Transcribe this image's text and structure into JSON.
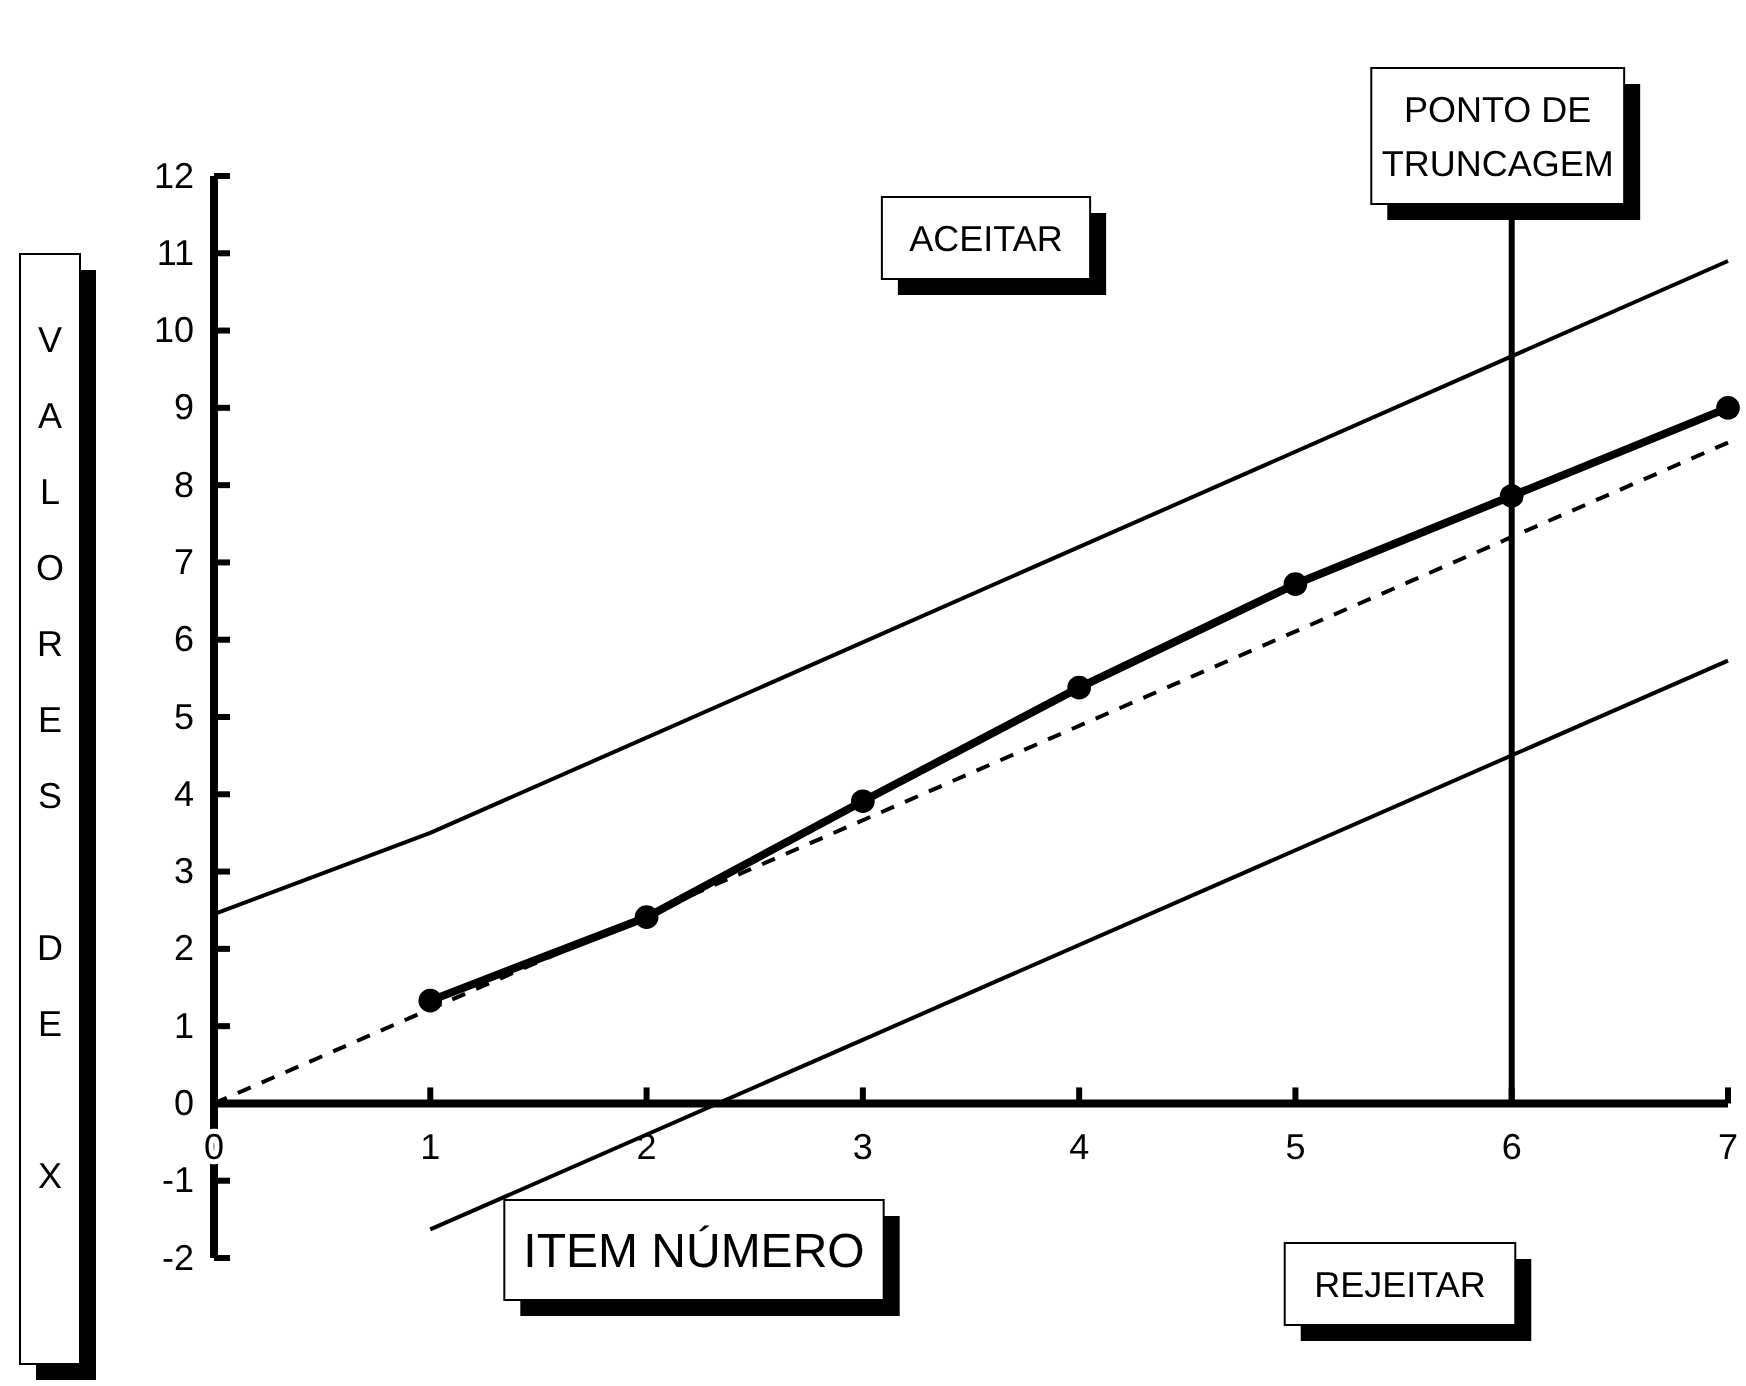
{
  "chart_data": {
    "type": "line",
    "xlabel": "ITEM NÚMERO",
    "ylabel": "VALORES DE X",
    "xlim": [
      0,
      7
    ],
    "xticks": [
      0,
      1,
      2,
      3,
      4,
      5,
      6,
      7
    ],
    "ylim": [
      -2,
      12
    ],
    "yticks": [
      -2,
      -1,
      0,
      1,
      2,
      3,
      4,
      5,
      6,
      7,
      8,
      9,
      10,
      11,
      12
    ],
    "grid": false,
    "marker": "circle",
    "series": [
      {
        "color": "#000000",
        "x": [
          1,
          2,
          3,
          4,
          5,
          6,
          7
        ],
        "values": [
          1.33,
          2.41,
          3.91,
          5.38,
          6.72,
          7.86,
          9.0
        ]
      },
      {
        "color": "#000000",
        "x": [
          0,
          7
        ],
        "values": [
          0,
          8.55
        ],
        "line_style": "dashed",
        "marker": "none"
      },
      {
        "color": "#000000",
        "x": [
          0,
          1,
          7
        ],
        "values": [
          2.45,
          3.5,
          10.9
        ],
        "marker": "none"
      },
      {
        "color": "#000000",
        "x": [
          1,
          7
        ],
        "values": [
          -1.63,
          5.73
        ],
        "marker": "none"
      }
    ],
    "ref_lines": [
      {
        "axis": "x",
        "value": 6,
        "label": "PONTO DE TRUNCAGEM"
      }
    ],
    "annotations": [
      "ACEITAR",
      "REJEITAR"
    ]
  }
}
